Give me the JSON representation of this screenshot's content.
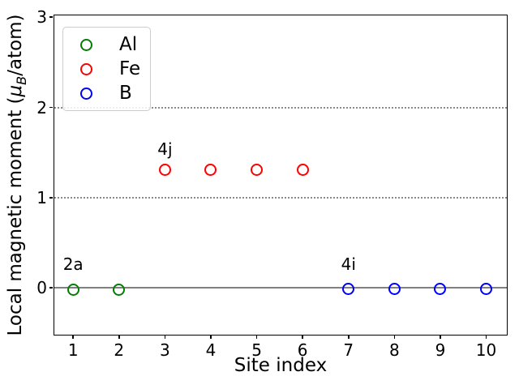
{
  "chart_data": {
    "type": "scatter",
    "title": "",
    "xlabel": "Site index",
    "ylabel": "Local magnetic moment (μB/atom)",
    "ylabel_rich": {
      "prefix": "Local magnetic moment (",
      "mu": "μ",
      "sub": "B",
      "suffix": "/atom)"
    },
    "xlim": [
      0.59,
      10.45
    ],
    "ylim": [
      -0.52,
      3.02
    ],
    "xticks": [
      1,
      2,
      3,
      4,
      5,
      6,
      7,
      8,
      9,
      10
    ],
    "yticks": [
      0,
      1,
      2,
      3
    ],
    "grid_y_dotted": [
      1,
      2
    ],
    "zero_line_y": 0,
    "grid_on": true,
    "legend_position": "upper-left",
    "series": [
      {
        "name": "Al",
        "color": "#008000",
        "x": [
          1,
          2
        ],
        "y": [
          -0.02,
          -0.02
        ]
      },
      {
        "name": "Fe",
        "color": "#ff0000",
        "x": [
          3,
          4,
          5,
          6
        ],
        "y": [
          1.31,
          1.31,
          1.31,
          1.31
        ]
      },
      {
        "name": "B",
        "color": "#0000ff",
        "x": [
          7,
          8,
          9,
          10
        ],
        "y": [
          -0.01,
          -0.01,
          -0.01,
          -0.01
        ]
      }
    ],
    "annotations": [
      {
        "text": "2a",
        "x": 1,
        "y": 0.17
      },
      {
        "text": "4j",
        "x": 3,
        "y": 1.45
      },
      {
        "text": "4i",
        "x": 7,
        "y": 0.17
      }
    ]
  },
  "colors": {
    "zero_line": "#808080",
    "grid": "#8a8a8a",
    "spine": "#000000"
  }
}
